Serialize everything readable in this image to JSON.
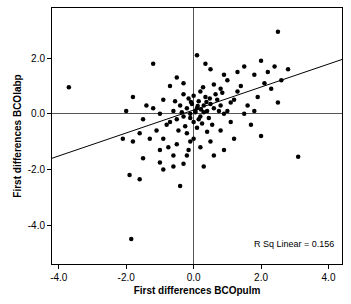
{
  "chart_data": {
    "type": "scatter",
    "x_label": "First differences BCOpulm",
    "y_label": "First differences BCOlabp",
    "annotations": [
      {
        "text": "R Sq Linear = 0.156"
      }
    ],
    "xlim": [
      -4.2,
      4.4
    ],
    "ylim": [
      -5.4,
      3.8
    ],
    "xticks": [
      {
        "value": -4,
        "label": "-4.0"
      },
      {
        "value": -2,
        "label": "-2.0"
      },
      {
        "value": 0,
        "label": "0.0"
      },
      {
        "value": 2,
        "label": "2.0"
      },
      {
        "value": 4,
        "label": "4.0"
      }
    ],
    "yticks": [
      {
        "value": -4,
        "label": "-4.0"
      },
      {
        "value": -2,
        "label": "-2.0"
      },
      {
        "value": 0,
        "label": "0.0"
      },
      {
        "value": 2,
        "label": "2.0"
      }
    ],
    "grid": false,
    "series": [
      {
        "type": "scatter",
        "marker": "circle",
        "color": "#000000",
        "x": [
          -3.7,
          -1.85,
          3.1,
          2.5,
          -1.9,
          -1.6,
          -2.0,
          -1.8,
          -1.2,
          -0.5,
          0.1,
          0.5,
          1.5,
          2.0,
          2.2,
          1.8,
          1.4,
          2.1,
          2.3,
          1.9,
          1.6,
          1.2,
          2.4,
          1.0,
          0.8,
          1.7,
          2.0,
          1.2,
          0.8,
          0.6,
          0.9,
          0.3,
          -0.3,
          -0.6,
          -1.0,
          -1.3,
          -1.5,
          -1.1,
          -0.8,
          -1.4,
          -0.9,
          -0.7,
          -0.3,
          0.05,
          0.1,
          -0.1,
          0.2,
          0.3,
          -0.2,
          0.15,
          0.4,
          -0.3,
          0.0,
          0.25,
          0.5,
          -0.4,
          0.35,
          -0.15,
          0.6,
          0.7,
          -0.5,
          -0.6,
          0.45,
          0.1,
          -0.25,
          0.55,
          0.8,
          0.9,
          -0.7,
          0.2,
          0.0,
          -0.05,
          0.3,
          0.65,
          0.85,
          1.1,
          1.0,
          -0.45,
          -0.2,
          0.4,
          0.15,
          -0.1,
          0.05,
          0.12,
          0.22,
          -0.08,
          0.38,
          0.48,
          -0.35,
          0.75,
          -0.55,
          0.28,
          -0.3,
          0.6,
          1.3,
          1.1,
          -0.9,
          -0.1,
          0.5,
          -0.5,
          0.2,
          -0.75,
          -1.6,
          -1.8,
          -2.1,
          -1.0,
          -1.2,
          1.5,
          1.8,
          2.5,
          2.6,
          2.8,
          1.3,
          0.9,
          0.35,
          -0.6,
          -0.9,
          -0.4,
          -0.2,
          0.0,
          -1.5,
          -1.0,
          -0.15
        ],
        "values": [
          0.95,
          -4.5,
          -1.55,
          2.95,
          -2.2,
          -2.35,
          0.1,
          0.6,
          1.8,
          1.3,
          2.1,
          1.6,
          1.7,
          1.9,
          1.5,
          1.4,
          1.0,
          1.1,
          0.9,
          0.6,
          0.3,
          0.5,
          1.7,
          1.2,
          0.9,
          -0.4,
          -0.8,
          -0.9,
          -0.6,
          -1.5,
          -1.3,
          -1.9,
          -1.8,
          -1.5,
          -1.3,
          -0.9,
          -0.2,
          -0.6,
          -0.4,
          0.3,
          0.5,
          1.0,
          0.7,
          0.1,
          0.2,
          0.0,
          -0.1,
          0.3,
          0.2,
          0.45,
          0.1,
          -0.1,
          -0.3,
          -0.35,
          0.35,
          0.3,
          0.6,
          0.55,
          0.2,
          0.5,
          -0.2,
          0.1,
          -0.15,
          -0.5,
          -0.45,
          -0.4,
          0.3,
          0.0,
          -0.3,
          0.8,
          0.65,
          0.35,
          0.05,
          0.7,
          0.75,
          0.4,
          0.1,
          -0.6,
          -0.7,
          -0.65,
          -0.2,
          -0.15,
          0.05,
          0.28,
          0.15,
          0.42,
          0.42,
          0.55,
          0.05,
          0.1,
          0.45,
          0.95,
          1.1,
          1.05,
          0.8,
          -0.3,
          -0.9,
          -1.0,
          -1.0,
          -1.1,
          -1.2,
          -1.2,
          -0.7,
          -1.0,
          -0.9,
          0.0,
          0.2,
          0.0,
          0.1,
          0.4,
          1.2,
          1.6,
          1.5,
          1.4,
          1.8,
          -1.9,
          -2.0,
          -2.6,
          -1.5,
          -0.9,
          -1.6,
          -1.75,
          -1.3
        ]
      },
      {
        "type": "line",
        "line_style": "solid",
        "color": "#000000",
        "x": [
          -4.2,
          4.4
        ],
        "values": [
          -1.6,
          1.95
        ]
      }
    ]
  }
}
